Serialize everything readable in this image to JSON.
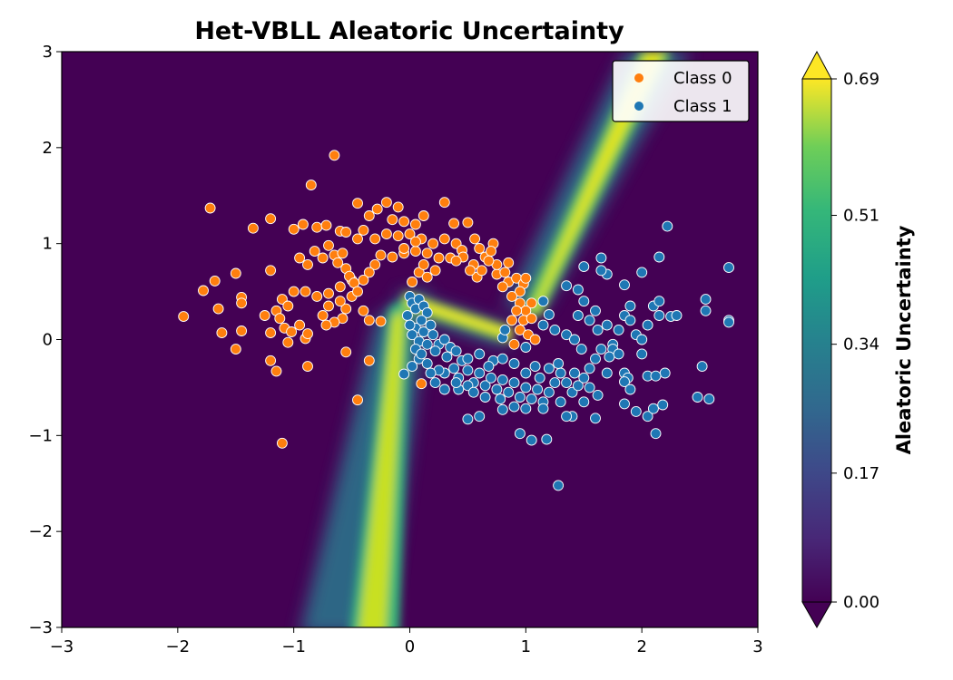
{
  "chart_data": {
    "type": "scatter",
    "title": "Het-VBLL Aleatoric Uncertainty",
    "xlabel": "",
    "ylabel": "",
    "xlim": [
      -3,
      3
    ],
    "ylim": [
      -3,
      3
    ],
    "x_ticks": [
      -3,
      -2,
      -1,
      0,
      1,
      2,
      3
    ],
    "y_ticks": [
      -3,
      -2,
      -1,
      0,
      1,
      2,
      3
    ],
    "x_tick_labels": [
      "−3",
      "−2",
      "−1",
      "0",
      "1",
      "2",
      "3"
    ],
    "y_tick_labels": [
      "−3",
      "−2",
      "−1",
      "0",
      "1",
      "2",
      "3"
    ],
    "background": "filled contour of aleatoric uncertainty (viridis), high along decision boundary",
    "legend_position": "top-right",
    "series": [
      {
        "name": "Class 0",
        "color": "#ff7f0e",
        "points": [
          [
            -0.65,
            1.92
          ],
          [
            -0.85,
            1.61
          ],
          [
            -1.72,
            1.37
          ],
          [
            -1.35,
            1.16
          ],
          [
            -1.2,
            1.26
          ],
          [
            -1.0,
            1.15
          ],
          [
            -0.92,
            1.2
          ],
          [
            -0.8,
            1.17
          ],
          [
            -0.72,
            1.19
          ],
          [
            -0.6,
            1.13
          ],
          [
            -0.45,
            1.42
          ],
          [
            -0.4,
            1.14
          ],
          [
            -0.35,
            1.29
          ],
          [
            -0.28,
            1.36
          ],
          [
            -0.2,
            1.43
          ],
          [
            -0.1,
            1.38
          ],
          [
            -0.15,
            1.25
          ],
          [
            -0.05,
            1.23
          ],
          [
            0.05,
            1.2
          ],
          [
            0.12,
            1.29
          ],
          [
            0.3,
            1.43
          ],
          [
            0.38,
            1.21
          ],
          [
            0.5,
            1.22
          ],
          [
            0.56,
            1.05
          ],
          [
            0.72,
            1.0
          ],
          [
            -0.3,
            1.05
          ],
          [
            -0.45,
            1.05
          ],
          [
            -0.55,
            1.12
          ],
          [
            -0.2,
            1.1
          ],
          [
            -0.1,
            1.08
          ],
          [
            0.0,
            1.1
          ],
          [
            0.1,
            1.05
          ],
          [
            0.2,
            1.0
          ],
          [
            0.3,
            1.05
          ],
          [
            0.4,
            1.0
          ],
          [
            0.45,
            0.93
          ],
          [
            0.6,
            0.95
          ],
          [
            0.65,
            0.86
          ],
          [
            0.55,
            0.78
          ],
          [
            0.46,
            0.86
          ],
          [
            0.35,
            0.85
          ],
          [
            0.25,
            0.85
          ],
          [
            0.15,
            0.9
          ],
          [
            0.05,
            0.92
          ],
          [
            -0.05,
            0.9
          ],
          [
            -0.15,
            0.86
          ],
          [
            -0.25,
            0.88
          ],
          [
            -0.3,
            0.78
          ],
          [
            -0.35,
            0.7
          ],
          [
            -0.4,
            0.62
          ],
          [
            -0.5,
            0.62
          ],
          [
            -0.6,
            0.55
          ],
          [
            -0.7,
            0.48
          ],
          [
            -0.8,
            0.45
          ],
          [
            -0.9,
            0.5
          ],
          [
            -1.0,
            0.5
          ],
          [
            -1.1,
            0.42
          ],
          [
            -1.05,
            0.35
          ],
          [
            -1.15,
            0.3
          ],
          [
            -1.25,
            0.25
          ],
          [
            -1.95,
            0.24
          ],
          [
            -1.78,
            0.51
          ],
          [
            -1.68,
            0.61
          ],
          [
            -1.65,
            0.32
          ],
          [
            -1.62,
            0.07
          ],
          [
            -1.5,
            0.69
          ],
          [
            -1.45,
            0.44
          ],
          [
            -1.45,
            0.38
          ],
          [
            -1.45,
            0.09
          ],
          [
            -1.5,
            -0.1
          ],
          [
            -1.2,
            0.72
          ],
          [
            -1.2,
            0.07
          ],
          [
            -1.2,
            -0.22
          ],
          [
            -1.15,
            -0.33
          ],
          [
            -1.12,
            0.22
          ],
          [
            -1.08,
            0.12
          ],
          [
            -1.05,
            -0.03
          ],
          [
            -1.02,
            0.08
          ],
          [
            -0.95,
            0.15
          ],
          [
            -0.9,
            0.01
          ],
          [
            -0.88,
            -0.28
          ],
          [
            -0.88,
            0.06
          ],
          [
            -0.95,
            0.85
          ],
          [
            -0.88,
            0.78
          ],
          [
            -0.82,
            0.92
          ],
          [
            -0.75,
            0.85
          ],
          [
            -0.7,
            0.98
          ],
          [
            -0.65,
            0.88
          ],
          [
            -0.62,
            0.8
          ],
          [
            -0.58,
            0.9
          ],
          [
            -0.55,
            0.74
          ],
          [
            -0.52,
            0.66
          ],
          [
            -0.48,
            0.59
          ],
          [
            -0.5,
            0.45
          ],
          [
            -0.55,
            0.32
          ],
          [
            -0.58,
            0.22
          ],
          [
            -0.65,
            0.18
          ],
          [
            -0.7,
            0.35
          ],
          [
            -0.75,
            0.25
          ],
          [
            -0.72,
            0.15
          ],
          [
            -0.6,
            0.4
          ],
          [
            -0.45,
            0.5
          ],
          [
            -0.4,
            0.3
          ],
          [
            -0.35,
            0.2
          ],
          [
            -0.25,
            0.19
          ],
          [
            -1.1,
            -1.08
          ],
          [
            -0.45,
            -0.63
          ],
          [
            -0.35,
            -0.22
          ],
          [
            -0.55,
            -0.13
          ],
          [
            0.1,
            -0.46
          ],
          [
            0.75,
            0.68
          ],
          [
            0.82,
            0.7
          ],
          [
            0.85,
            0.6
          ],
          [
            0.8,
            0.55
          ],
          [
            0.92,
            0.64
          ],
          [
            0.98,
            0.58
          ],
          [
            1.0,
            0.64
          ],
          [
            0.95,
            0.5
          ],
          [
            0.88,
            0.45
          ],
          [
            0.95,
            0.38
          ],
          [
            1.05,
            0.38
          ],
          [
            1.0,
            0.3
          ],
          [
            0.92,
            0.3
          ],
          [
            0.88,
            0.2
          ],
          [
            0.98,
            0.2
          ],
          [
            1.05,
            0.22
          ],
          [
            0.95,
            0.1
          ],
          [
            1.02,
            0.05
          ],
          [
            1.08,
            0.0
          ],
          [
            0.9,
            -0.05
          ],
          [
            0.75,
            0.78
          ],
          [
            0.68,
            0.82
          ],
          [
            0.7,
            0.92
          ],
          [
            0.85,
            0.8
          ],
          [
            0.58,
            0.65
          ],
          [
            0.62,
            0.72
          ],
          [
            0.52,
            0.72
          ],
          [
            0.4,
            0.82
          ],
          [
            0.02,
            0.6
          ],
          [
            0.08,
            0.7
          ],
          [
            0.15,
            0.65
          ],
          [
            0.22,
            0.72
          ],
          [
            0.12,
            0.78
          ],
          [
            -0.05,
            0.95
          ],
          [
            0.05,
            1.02
          ]
        ]
      },
      {
        "name": "Class 1",
        "color": "#1f77b4",
        "points": [
          [
            0.0,
            0.45
          ],
          [
            0.02,
            0.38
          ],
          [
            0.05,
            0.32
          ],
          [
            0.08,
            0.42
          ],
          [
            0.12,
            0.35
          ],
          [
            0.15,
            0.28
          ],
          [
            0.1,
            0.2
          ],
          [
            0.05,
            0.12
          ],
          [
            0.02,
            0.05
          ],
          [
            0.08,
            -0.02
          ],
          [
            0.12,
            0.08
          ],
          [
            0.18,
            0.15
          ],
          [
            0.2,
            0.05
          ],
          [
            0.25,
            -0.05
          ],
          [
            0.22,
            -0.12
          ],
          [
            0.3,
            0.0
          ],
          [
            0.35,
            -0.08
          ],
          [
            0.32,
            -0.18
          ],
          [
            0.4,
            -0.12
          ],
          [
            0.45,
            -0.22
          ],
          [
            0.38,
            -0.3
          ],
          [
            0.3,
            -0.35
          ],
          [
            0.42,
            -0.4
          ],
          [
            0.5,
            -0.32
          ],
          [
            0.55,
            -0.45
          ],
          [
            0.6,
            -0.35
          ],
          [
            0.65,
            -0.48
          ],
          [
            0.7,
            -0.4
          ],
          [
            0.75,
            -0.52
          ],
          [
            0.8,
            -0.42
          ],
          [
            0.85,
            -0.55
          ],
          [
            0.9,
            -0.45
          ],
          [
            0.95,
            -0.6
          ],
          [
            1.0,
            -0.5
          ],
          [
            1.05,
            -0.62
          ],
          [
            1.1,
            -0.52
          ],
          [
            1.15,
            -0.65
          ],
          [
            1.2,
            -0.55
          ],
          [
            1.25,
            -0.45
          ],
          [
            1.3,
            -0.35
          ],
          [
            1.35,
            -0.45
          ],
          [
            1.4,
            -0.55
          ],
          [
            1.45,
            -0.48
          ],
          [
            1.5,
            -0.4
          ],
          [
            1.55,
            -0.3
          ],
          [
            1.6,
            -0.2
          ],
          [
            1.65,
            -0.1
          ],
          [
            1.7,
            -0.35
          ],
          [
            1.75,
            -0.05
          ],
          [
            1.8,
            0.1
          ],
          [
            1.85,
            0.25
          ],
          [
            1.9,
            0.35
          ],
          [
            1.95,
            0.05
          ],
          [
            2.0,
            -0.15
          ],
          [
            2.05,
            0.15
          ],
          [
            2.1,
            0.35
          ],
          [
            2.15,
            0.25
          ],
          [
            2.2,
            -0.35
          ],
          [
            2.25,
            0.24
          ],
          [
            2.3,
            0.25
          ],
          [
            2.55,
            0.42
          ],
          [
            2.55,
            0.3
          ],
          [
            2.52,
            -0.28
          ],
          [
            2.58,
            -0.62
          ],
          [
            2.48,
            -0.6
          ],
          [
            2.75,
            0.75
          ],
          [
            2.75,
            0.2
          ],
          [
            2.75,
            0.18
          ],
          [
            2.22,
            1.18
          ],
          [
            2.15,
            0.86
          ],
          [
            2.0,
            0.7
          ],
          [
            1.85,
            0.57
          ],
          [
            1.7,
            0.68
          ],
          [
            1.65,
            0.72
          ],
          [
            1.65,
            0.85
          ],
          [
            1.5,
            0.76
          ],
          [
            1.5,
            0.4
          ],
          [
            1.45,
            0.52
          ],
          [
            1.35,
            0.56
          ],
          [
            1.15,
            0.4
          ],
          [
            1.2,
            0.26
          ],
          [
            1.15,
            0.15
          ],
          [
            1.25,
            0.1
          ],
          [
            1.35,
            0.05
          ],
          [
            1.42,
            0.0
          ],
          [
            1.48,
            -0.1
          ],
          [
            1.55,
            0.2
          ],
          [
            1.45,
            0.25
          ],
          [
            1.62,
            0.1
          ],
          [
            1.75,
            -0.1
          ],
          [
            1.85,
            -0.35
          ],
          [
            1.88,
            -0.4
          ],
          [
            1.85,
            -0.67
          ],
          [
            1.95,
            -0.75
          ],
          [
            2.05,
            -0.8
          ],
          [
            2.1,
            -0.72
          ],
          [
            2.12,
            -0.98
          ],
          [
            2.18,
            -0.68
          ],
          [
            2.05,
            -0.38
          ],
          [
            2.12,
            -0.38
          ],
          [
            1.6,
            -0.82
          ],
          [
            1.4,
            -0.8
          ],
          [
            1.35,
            -0.8
          ],
          [
            1.18,
            -1.04
          ],
          [
            1.05,
            -1.05
          ],
          [
            0.95,
            -0.98
          ],
          [
            0.8,
            -0.73
          ],
          [
            0.6,
            -0.8
          ],
          [
            0.5,
            -0.83
          ],
          [
            1.28,
            -1.52
          ],
          [
            -0.05,
            -0.36
          ],
          [
            0.02,
            -0.28
          ],
          [
            0.08,
            -0.2
          ],
          [
            0.15,
            -0.25
          ],
          [
            0.25,
            -0.32
          ],
          [
            0.3,
            -0.52
          ],
          [
            0.42,
            -0.52
          ],
          [
            0.5,
            -0.48
          ],
          [
            0.65,
            -0.6
          ],
          [
            0.78,
            -0.62
          ],
          [
            0.9,
            -0.7
          ],
          [
            1.0,
            -0.72
          ],
          [
            0.72,
            -0.22
          ],
          [
            0.8,
            -0.2
          ],
          [
            0.9,
            -0.25
          ],
          [
            1.0,
            -0.35
          ],
          [
            1.08,
            -0.28
          ],
          [
            1.12,
            -0.4
          ],
          [
            1.2,
            -0.3
          ],
          [
            1.28,
            -0.25
          ],
          [
            1.0,
            -0.08
          ],
          [
            0.8,
            0.02
          ],
          [
            0.82,
            0.1
          ],
          [
            -0.02,
            0.25
          ],
          [
            0.0,
            0.15
          ],
          [
            0.05,
            -0.1
          ],
          [
            0.15,
            -0.05
          ],
          [
            0.1,
            -0.15
          ],
          [
            0.18,
            -0.35
          ],
          [
            0.22,
            -0.45
          ],
          [
            0.6,
            -0.15
          ],
          [
            0.5,
            -0.2
          ],
          [
            0.55,
            -0.55
          ],
          [
            0.68,
            -0.28
          ],
          [
            0.4,
            -0.45
          ],
          [
            1.62,
            -0.58
          ],
          [
            1.5,
            -0.65
          ],
          [
            1.3,
            -0.65
          ],
          [
            1.15,
            -0.72
          ],
          [
            1.55,
            -0.5
          ],
          [
            1.72,
            -0.18
          ],
          [
            1.85,
            -0.44
          ],
          [
            1.9,
            0.2
          ],
          [
            2.0,
            0.0
          ],
          [
            2.15,
            0.4
          ],
          [
            1.7,
            0.15
          ],
          [
            1.6,
            0.3
          ],
          [
            1.8,
            -0.15
          ],
          [
            1.9,
            -0.52
          ],
          [
            1.42,
            -0.35
          ]
        ]
      }
    ],
    "colorbar": {
      "label": "Aleatoric Uncertainty",
      "colormap": "viridis",
      "min": 0.0,
      "max": 0.69,
      "ticks": [
        "0.00",
        "0.17",
        "0.34",
        "0.51",
        "0.69"
      ],
      "extend": "both"
    }
  }
}
